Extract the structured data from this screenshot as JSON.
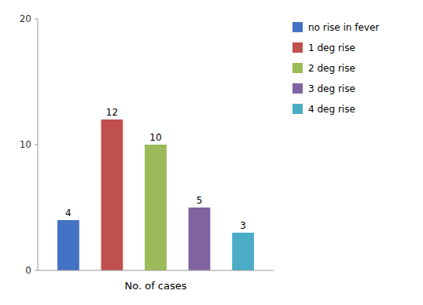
{
  "chart_data": {
    "type": "bar",
    "categories": [
      "no rise in fever",
      "1 deg rise",
      "2 deg rise",
      "3 deg rise",
      "4 deg rise"
    ],
    "values": [
      4,
      12,
      10,
      5,
      3
    ],
    "colors": [
      "#4472c4",
      "#c0504d",
      "#9bbb59",
      "#8064a2",
      "#4bacc6"
    ],
    "xlabel": "No. of cases",
    "ylim": [
      0,
      20
    ],
    "yticks": [
      0,
      10,
      20
    ],
    "grid": false,
    "legend": "right",
    "data_labels": true,
    "tick_labels": "y"
  }
}
